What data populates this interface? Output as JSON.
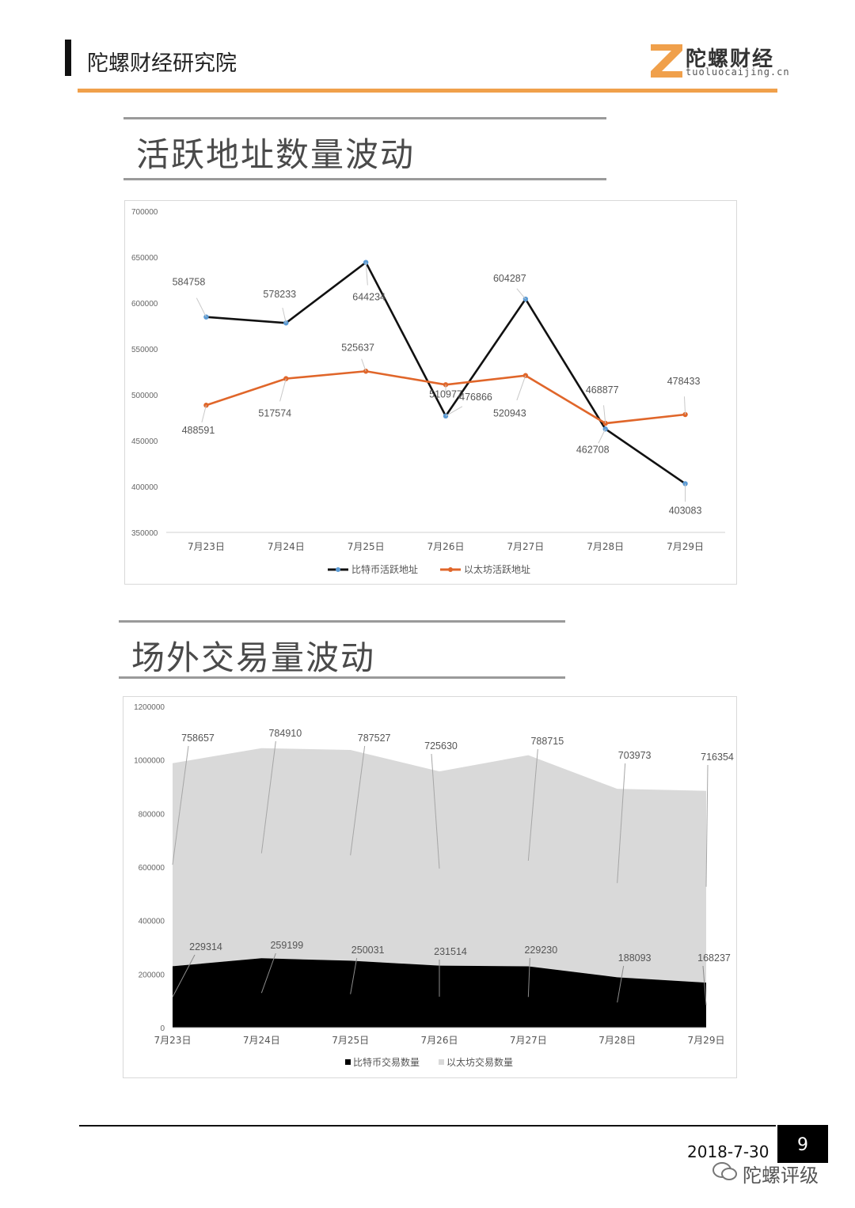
{
  "header": {
    "org": "陀螺财经研究院",
    "logo_cn": "陀螺财经",
    "logo_en": "tuoluocaijing.cn",
    "accent": "#f0a04b"
  },
  "sections": [
    {
      "title": "活跃地址数量波动"
    },
    {
      "title": "场外交易量波动"
    }
  ],
  "chart_data": [
    {
      "type": "line",
      "categories": [
        "7月23日",
        "7月24日",
        "7月25日",
        "7月26日",
        "7月27日",
        "7月28日",
        "7月29日"
      ],
      "series": [
        {
          "name": "比特币活跃地址",
          "color": "#111111",
          "marker": "#5b9bd5",
          "values": [
            584758,
            578233,
            644234,
            476866,
            604287,
            462708,
            403083
          ]
        },
        {
          "name": "以太坊活跃地址",
          "color": "#e0662a",
          "marker": "#e0662a",
          "values": [
            488591,
            517574,
            525637,
            510977,
            520943,
            468877,
            478433
          ]
        }
      ],
      "yticks": [
        "700000",
        "650000",
        "600000",
        "550000",
        "500000",
        "450000",
        "400000",
        "350000"
      ],
      "ylim": [
        350000,
        700000
      ],
      "legend": "bottom",
      "grid": false
    },
    {
      "type": "area",
      "stacked": true,
      "categories": [
        "7月23日",
        "7月24日",
        "7月25日",
        "7月26日",
        "7月27日",
        "7月28日",
        "7月29日"
      ],
      "series": [
        {
          "name": "比特币交易数量",
          "color": "#000000",
          "values": [
            229314,
            259199,
            250031,
            231514,
            229230,
            188093,
            168237
          ]
        },
        {
          "name": "以太坊交易数量",
          "color": "#d9d9d9",
          "values": [
            758657,
            784910,
            787527,
            725630,
            788715,
            703973,
            716354
          ]
        }
      ],
      "yticks": [
        "1200000",
        "1000000",
        "800000",
        "600000",
        "400000",
        "200000",
        "0"
      ],
      "ylim": [
        0,
        1200000
      ],
      "legend": "bottom",
      "grid": false
    }
  ],
  "footer": {
    "date": "2018-7-30",
    "page": "9",
    "watermark": "陀螺评级"
  }
}
